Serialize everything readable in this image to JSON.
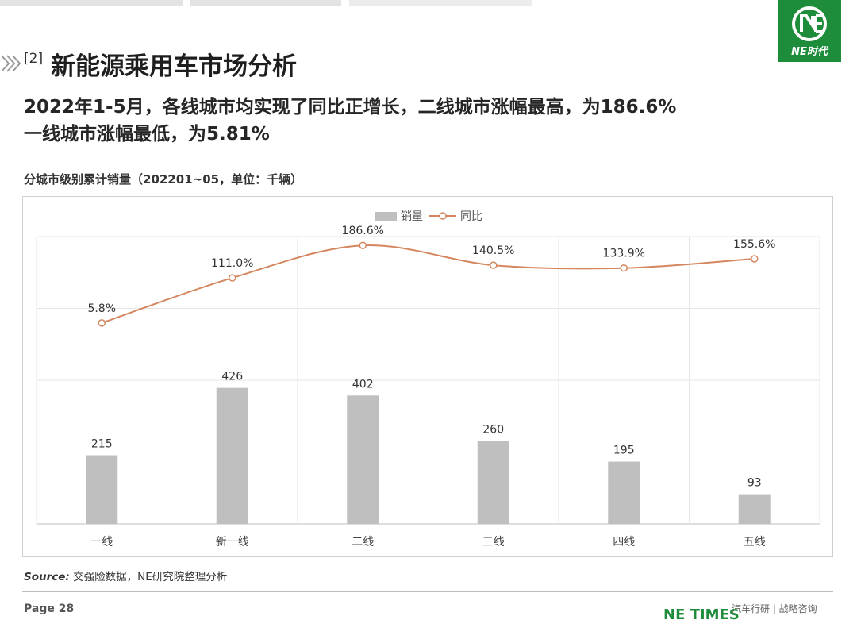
{
  "header": {
    "section_number": "[2]",
    "section_title": "新能源乘用车市场分析",
    "headline_line1": "2022年1-5月，各线城市均实现了同比正增长，二线城市涨幅最高，为186.6%",
    "headline_line2": "一线城市涨幅最低，为5.81%"
  },
  "logo": {
    "text": "NE时代"
  },
  "chart_caption": "分城市级别累计销量（202201~05，单位：千辆）",
  "chart_data": {
    "type": "bar",
    "categories": [
      "一线",
      "新一线",
      "二线",
      "三线",
      "四线",
      "五线"
    ],
    "series": [
      {
        "name": "销量",
        "type": "bar",
        "values": [
          215,
          426,
          402,
          260,
          195,
          93
        ],
        "labels": [
          "215",
          "426",
          "402",
          "260",
          "195",
          "93"
        ],
        "color": "#bfbfbf"
      },
      {
        "name": "同比",
        "type": "line",
        "values": [
          5.8,
          111.0,
          186.6,
          140.5,
          133.9,
          155.6
        ],
        "labels": [
          "5.8%",
          "111.0%",
          "186.6%",
          "140.5%",
          "133.9%",
          "155.6%"
        ],
        "color": "#d4875f"
      }
    ],
    "legend_position": "top-center",
    "grid": true
  },
  "footer": {
    "source_label": "Source:",
    "source_text": " 交强险数据，NE研究院整理分析",
    "page": "Page 28",
    "brand": "NE TIMES",
    "tagline": "汽车行研 | 战略咨询"
  }
}
